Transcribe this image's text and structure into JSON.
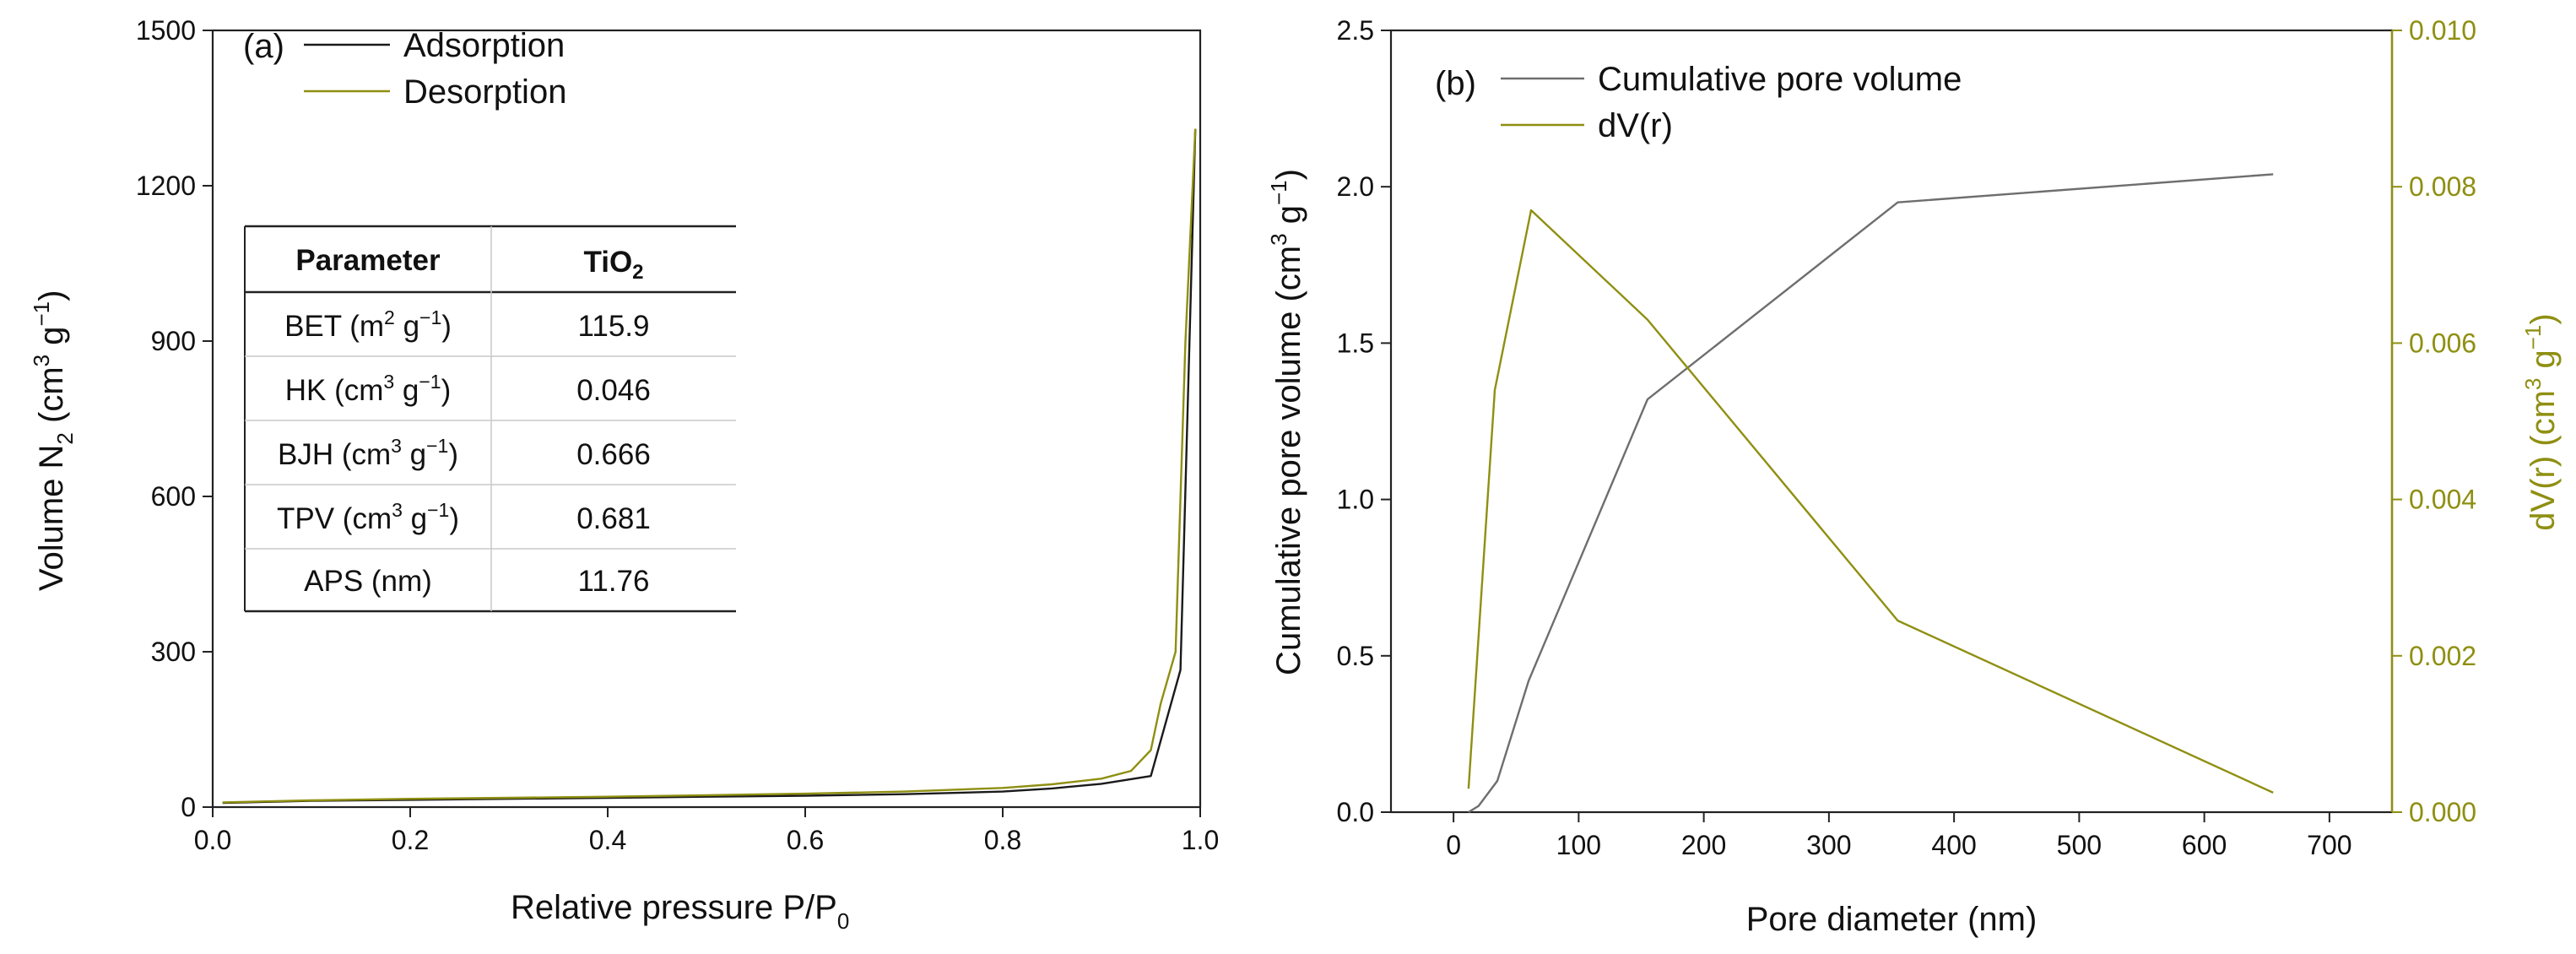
{
  "colors": {
    "black": "#1a1a1a",
    "olive": "#8f8f12",
    "gray": "#6e6e6e",
    "tableLine": "#c8c8c8"
  },
  "chart_data": [
    {
      "type": "line",
      "panel_label": "(a)",
      "xlabel": "Relative pressure P/P",
      "xlabel_sub": "0",
      "ylabel": "Volume N",
      "ylabel_sub": "2",
      "ylabel_unit": " (cm",
      "ylabel_sup1": "3",
      "ylabel_mid": " g",
      "ylabel_sup2": "−1",
      "ylabel_end": ")",
      "xlim": [
        0.0,
        1.0
      ],
      "ylim": [
        0,
        1500
      ],
      "xticks": [
        "0.0",
        "0.2",
        "0.4",
        "0.6",
        "0.8",
        "1.0"
      ],
      "yticks": [
        "0",
        "300",
        "600",
        "900",
        "1200",
        "1500"
      ],
      "legend_position": "top-left",
      "series": [
        {
          "name": "Adsorption",
          "color": "#1a1a1a",
          "x": [
            0.01,
            0.05,
            0.1,
            0.2,
            0.3,
            0.4,
            0.5,
            0.6,
            0.7,
            0.8,
            0.85,
            0.9,
            0.95,
            0.98,
            0.995
          ],
          "y": [
            8,
            10,
            12,
            14,
            16,
            18,
            20,
            22,
            25,
            30,
            36,
            45,
            60,
            265,
            1310
          ]
        },
        {
          "name": "Desorption",
          "color": "#8f8f12",
          "x": [
            0.995,
            0.985,
            0.975,
            0.96,
            0.95,
            0.93,
            0.9,
            0.85,
            0.8,
            0.7,
            0.6,
            0.5,
            0.4,
            0.3,
            0.2,
            0.1,
            0.05,
            0.01
          ],
          "y": [
            1310,
            900,
            300,
            200,
            110,
            70,
            55,
            44,
            37,
            30,
            26,
            23,
            20,
            18,
            16,
            13,
            11,
            9
          ]
        }
      ],
      "table": {
        "headers": [
          "Parameter",
          "TiO",
          "2"
        ],
        "rows": [
          {
            "pre": "BET (m",
            "sup1": "2",
            "mid": " g",
            "sup2": "−1",
            "post": ")",
            "value": "115.9"
          },
          {
            "pre": "HK (cm",
            "sup1": "3",
            "mid": " g",
            "sup2": "−1",
            "post": ")",
            "value": "0.046"
          },
          {
            "pre": "BJH (cm",
            "sup1": "3",
            "mid": " g",
            "sup2": "−1",
            "post": ")",
            "value": "0.666"
          },
          {
            "pre": "TPV (cm",
            "sup1": "3",
            "mid": " g",
            "sup2": "−1",
            "post": ")",
            "value": "0.681"
          },
          {
            "pre": "APS (nm)",
            "sup1": "",
            "mid": "",
            "sup2": "",
            "post": "",
            "value": "11.76"
          }
        ]
      }
    },
    {
      "type": "line",
      "panel_label": "(b)",
      "xlabel": "Pore diameter (nm)",
      "ylabel": "Cumulative pore volume (cm",
      "ylabel_sup1": "3",
      "ylabel_mid": " g",
      "ylabel_sup2": "−1",
      "ylabel_end": ")",
      "y2label": "dV(r) (cm",
      "y2label_sup1": "3",
      "y2label_mid": " g",
      "y2label_sup2": "−1",
      "y2label_end": ")",
      "xlim": [
        -50,
        750
      ],
      "ylim": [
        0.0,
        2.5
      ],
      "y2lim": [
        0.0,
        0.01
      ],
      "xticks": [
        "0",
        "100",
        "200",
        "300",
        "400",
        "500",
        "600",
        "700"
      ],
      "yticks": [
        "0.0",
        "0.5",
        "1.0",
        "1.5",
        "2.0",
        "2.5"
      ],
      "y2ticks": [
        "0.000",
        "0.002",
        "0.004",
        "0.006",
        "0.008",
        "0.010"
      ],
      "legend_position": "top-left",
      "series": [
        {
          "name": "Cumulative pore volume",
          "axis": "left",
          "color": "#6e6e6e",
          "x": [
            12,
            20,
            35,
            60,
            155,
            355,
            655
          ],
          "y": [
            0.0,
            0.02,
            0.1,
            0.42,
            1.32,
            1.95,
            2.04
          ]
        },
        {
          "name": "dV(r)",
          "axis": "right",
          "color": "#8f8f12",
          "x": [
            12,
            33,
            62,
            155,
            355,
            655
          ],
          "y": [
            0.0003,
            0.0054,
            0.0077,
            0.0063,
            0.00245,
            0.00025
          ]
        }
      ]
    }
  ]
}
